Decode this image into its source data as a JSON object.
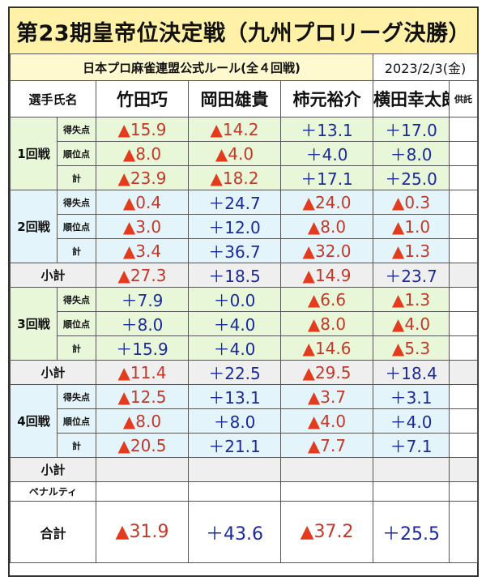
{
  "title": "第23期皇帝位決定戦（九州プロリーグ決勝）",
  "rule": "日本プロ麻雀連盟公式ルール(全４回戦)",
  "date": "2023/2/3(金)",
  "header": {
    "label": "選手氏名",
    "players": [
      "竹田巧",
      "岡田雄貴",
      "柿元裕介",
      "横田幸太朗"
    ],
    "kyotaku": "供託"
  },
  "labels": {
    "score": "得失点",
    "rank": "順位点",
    "sum": "計",
    "subtotal": "小計",
    "penalty": "ペナルティ",
    "total": "合計"
  },
  "rounds": [
    {
      "label": "1回戦",
      "score": [
        "15.9",
        "14.2",
        "13.1",
        "17.0"
      ],
      "score_sign": [
        "neg",
        "neg",
        "pos",
        "pos"
      ],
      "rank": [
        "8.0",
        "4.0",
        "4.0",
        "8.0"
      ],
      "rank_sign": [
        "neg",
        "neg",
        "pos",
        "pos"
      ],
      "sum": [
        "23.9",
        "18.2",
        "17.1",
        "25.0"
      ],
      "sum_sign": [
        "neg",
        "neg",
        "pos",
        "pos"
      ]
    },
    {
      "label": "2回戦",
      "score": [
        "0.4",
        "24.7",
        "24.0",
        "0.3"
      ],
      "score_sign": [
        "neg",
        "pos",
        "neg",
        "neg"
      ],
      "rank": [
        "3.0",
        "12.0",
        "8.0",
        "1.0"
      ],
      "rank_sign": [
        "neg",
        "pos",
        "neg",
        "neg"
      ],
      "sum": [
        "3.4",
        "36.7",
        "32.0",
        "1.3"
      ],
      "sum_sign": [
        "neg",
        "pos",
        "neg",
        "neg"
      ]
    },
    {
      "label": "3回戦",
      "score": [
        "7.9",
        "0.0",
        "6.6",
        "1.3"
      ],
      "score_sign": [
        "pos",
        "pos",
        "neg",
        "neg"
      ],
      "rank": [
        "8.0",
        "4.0",
        "8.0",
        "4.0"
      ],
      "rank_sign": [
        "pos",
        "pos",
        "neg",
        "neg"
      ],
      "sum": [
        "15.9",
        "4.0",
        "14.6",
        "5.3"
      ],
      "sum_sign": [
        "pos",
        "pos",
        "neg",
        "neg"
      ]
    },
    {
      "label": "4回戦",
      "score": [
        "12.5",
        "13.1",
        "3.7",
        "3.1"
      ],
      "score_sign": [
        "neg",
        "pos",
        "neg",
        "pos"
      ],
      "rank": [
        "8.0",
        "8.0",
        "4.0",
        "4.0"
      ],
      "rank_sign": [
        "neg",
        "pos",
        "neg",
        "pos"
      ],
      "sum": [
        "20.5",
        "21.1",
        "7.7",
        "7.1"
      ],
      "sum_sign": [
        "neg",
        "pos",
        "neg",
        "pos"
      ]
    }
  ],
  "subtotals": [
    {
      "values": [
        "27.3",
        "18.5",
        "14.9",
        "23.7"
      ],
      "signs": [
        "neg",
        "pos",
        "neg",
        "pos"
      ]
    },
    {
      "values": [
        "11.4",
        "22.5",
        "29.5",
        "18.4"
      ],
      "signs": [
        "neg",
        "pos",
        "neg",
        "pos"
      ]
    }
  ],
  "totals": {
    "values": [
      "31.9",
      "43.6",
      "37.2",
      "25.5"
    ],
    "signs": [
      "neg",
      "pos",
      "neg",
      "pos"
    ]
  },
  "sign_symbols": {
    "neg": "▲",
    "pos": "＋"
  },
  "colors": {
    "negative": "#c0392b",
    "negative_triangle": "#e23b1e",
    "positive": "#1a2a9e",
    "title_bg": "#fff2a8",
    "round_green": "#e8f7d8",
    "round_blue": "#e3f4fb",
    "subtotal_gray": "#efefef"
  }
}
